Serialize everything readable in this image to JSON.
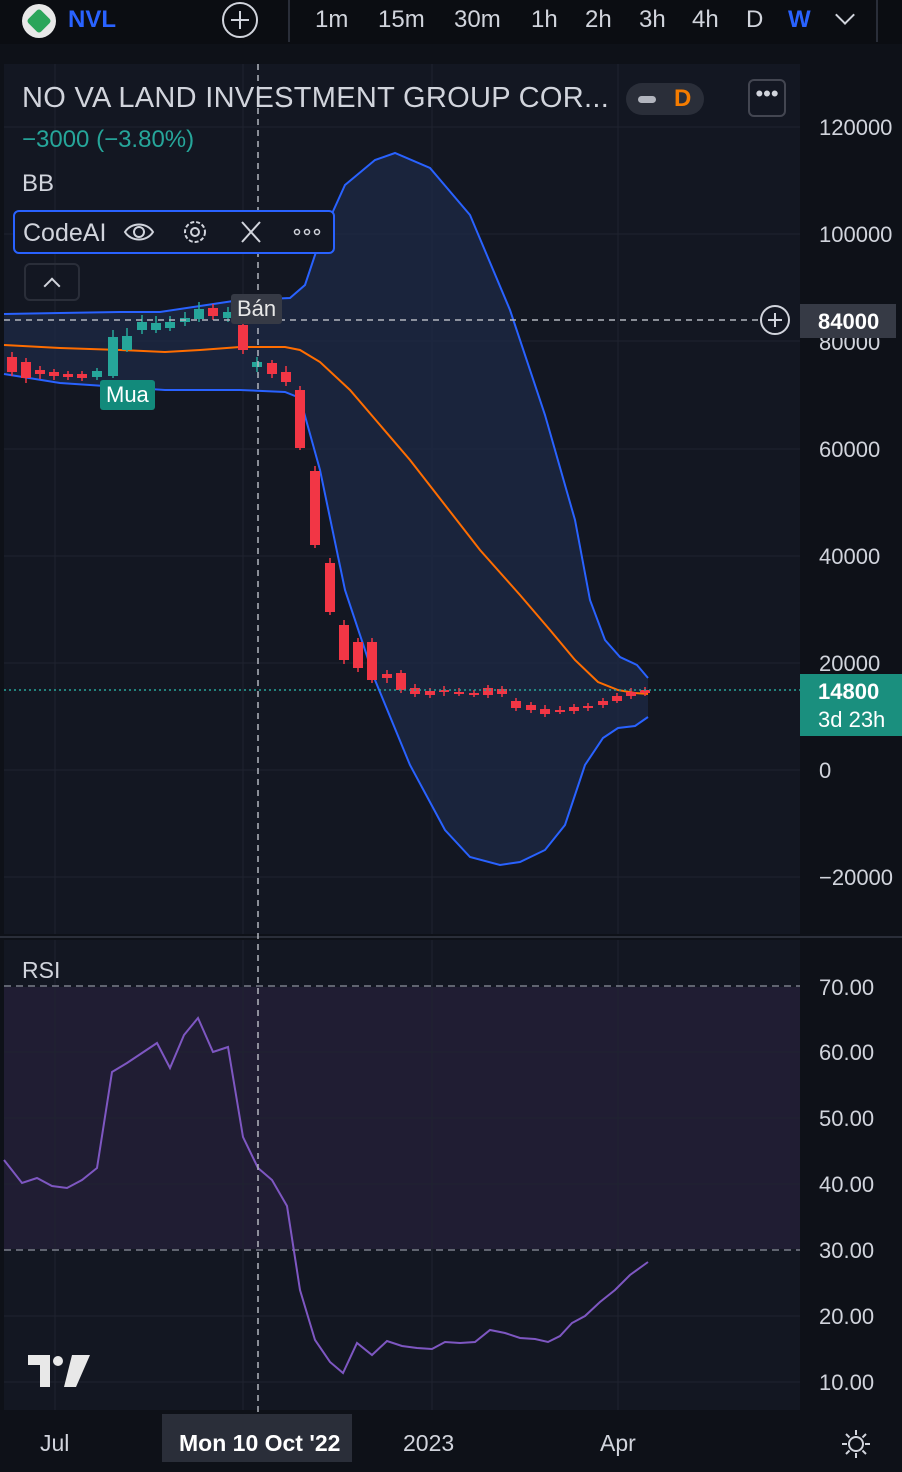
{
  "header": {
    "ticker": "NVL",
    "timeframes": [
      "1m",
      "15m",
      "30m",
      "1h",
      "2h",
      "3h",
      "4h",
      "D",
      "W"
    ],
    "active_timeframe": "W"
  },
  "legend": {
    "symbol_name": "NO VA LAND INVESTMENT GROUP COR...",
    "interval_badge": "D",
    "change": "−3000 (−3.80%)",
    "indicator_bb": "BB",
    "indicator_codeai": "CodeAI",
    "indicator_rsi": "RSI"
  },
  "signals": {
    "sell": "Bán",
    "buy": "Mua"
  },
  "price_axis": {
    "labels": [
      "120000",
      "100000",
      "80000",
      "60000",
      "40000",
      "20000",
      "0",
      "−20000"
    ],
    "crosshair_price": "84000",
    "last_price": "14800",
    "countdown": "3d 23h"
  },
  "rsi_axis": {
    "labels": [
      "70.00",
      "60.00",
      "50.00",
      "40.00",
      "30.00",
      "20.00",
      "10.00"
    ]
  },
  "time_axis": {
    "labels": [
      "Jul",
      "2023",
      "Apr"
    ],
    "crosshair_date": "Mon 10 Oct '22"
  },
  "colors": {
    "up": "#26a69a",
    "down": "#f23645",
    "bb_band": "#2962ff",
    "bb_basis": "#ff6d00",
    "rsi": "#7e57c2",
    "accent": "#2962ff"
  },
  "icons": {
    "settings": "gear-icon",
    "visibility": "eye-icon",
    "close": "close-icon",
    "more": "more-icon"
  }
}
